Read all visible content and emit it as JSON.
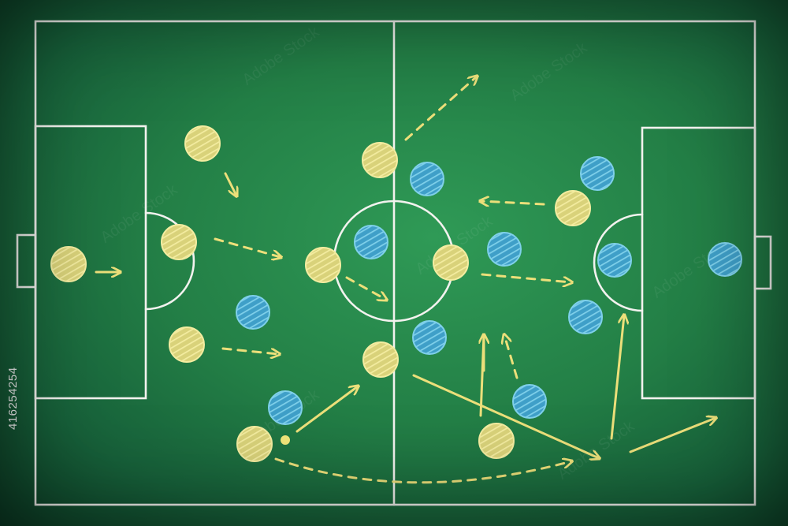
{
  "image": {
    "stock_id": "416254254",
    "watermark": "Adobe Stock"
  },
  "colors": {
    "board": "#237f46",
    "chalk_lines": "#f2f2ee",
    "team_yellow": "#e8de7c",
    "team_blue": "#4fb3d6",
    "arrows": "#ecdf7a"
  },
  "icons": {
    "yellow_player": "player-yellow-icon",
    "blue_player": "player-blue-icon",
    "ball": "ball-icon"
  }
}
